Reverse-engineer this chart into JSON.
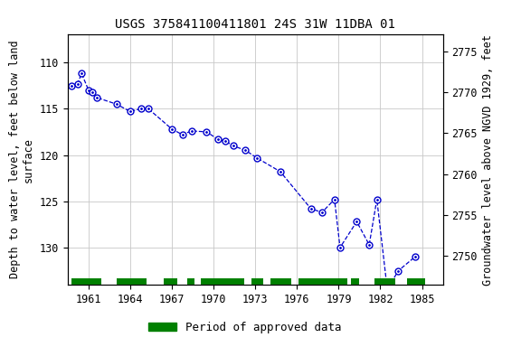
{
  "title": "USGS 375841100411801 24S 31W 11DBA 01",
  "ylabel_left": "Depth to water level, feet below land\nsurface",
  "ylabel_right": "Groundwater level above NGVD 1929, feet",
  "xlim": [
    1959.5,
    1986.5
  ],
  "ylim_left": [
    134,
    107
  ],
  "ylim_right": [
    2746.5,
    2777
  ],
  "xticks": [
    1961,
    1964,
    1967,
    1970,
    1973,
    1976,
    1979,
    1982,
    1985
  ],
  "yticks_left": [
    110,
    115,
    120,
    125,
    130
  ],
  "yticks_right": [
    2750,
    2755,
    2760,
    2765,
    2770,
    2775
  ],
  "data_x": [
    1959.75,
    1960.2,
    1960.5,
    1961.0,
    1961.25,
    1961.6,
    1963.0,
    1964.0,
    1964.75,
    1965.3,
    1967.0,
    1967.75,
    1968.4,
    1969.5,
    1970.3,
    1970.85,
    1971.4,
    1972.3,
    1973.1,
    1974.8,
    1977.0,
    1977.8,
    1978.7,
    1979.1,
    1980.3,
    1981.2,
    1981.75,
    1982.5,
    1983.3,
    1984.5
  ],
  "data_y": [
    112.5,
    112.3,
    111.2,
    113.0,
    113.2,
    113.8,
    114.5,
    115.3,
    115.0,
    115.0,
    117.2,
    117.8,
    117.4,
    117.5,
    118.3,
    118.5,
    119.0,
    119.5,
    120.3,
    121.8,
    125.8,
    126.2,
    124.8,
    130.0,
    127.2,
    129.7,
    124.8,
    134.5,
    132.5,
    131.0
  ],
  "green_bars": [
    [
      1959.8,
      1961.9
    ],
    [
      1963.0,
      1965.2
    ],
    [
      1966.4,
      1967.4
    ],
    [
      1968.1,
      1968.6
    ],
    [
      1969.1,
      1972.2
    ],
    [
      1972.7,
      1973.6
    ],
    [
      1974.1,
      1975.6
    ],
    [
      1976.1,
      1979.6
    ],
    [
      1979.9,
      1980.5
    ],
    [
      1981.6,
      1983.1
    ],
    [
      1983.9,
      1985.2
    ]
  ],
  "background_color": "#ffffff",
  "line_color": "#0000cc",
  "marker_color": "#0000cc",
  "grid_color": "#c8c8c8",
  "green_bar_color": "#008000",
  "title_fontsize": 10,
  "label_fontsize": 8.5,
  "tick_fontsize": 8.5,
  "legend_fontsize": 9
}
